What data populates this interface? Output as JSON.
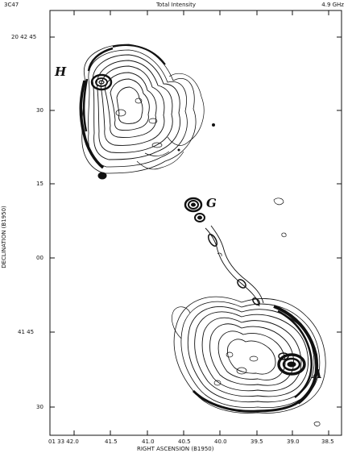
{
  "header": {
    "source": "3C47",
    "title": "Total Intensity",
    "frequency": "4.9 GHz"
  },
  "axes": {
    "ylabel": "DECLINATION (B1950)",
    "xlabel": "RIGHT ASCENSION (B1950)",
    "yticks": [
      "20 42 45",
      "30",
      "15",
      "00",
      "41 45",
      "30"
    ],
    "xticks": [
      "01 33 42.0",
      "41.5",
      "41.0",
      "40.5",
      "40.0",
      "39.5",
      "39.0",
      "38.5"
    ]
  },
  "labels": {
    "H": "H",
    "G": "G",
    "A": "A"
  }
}
